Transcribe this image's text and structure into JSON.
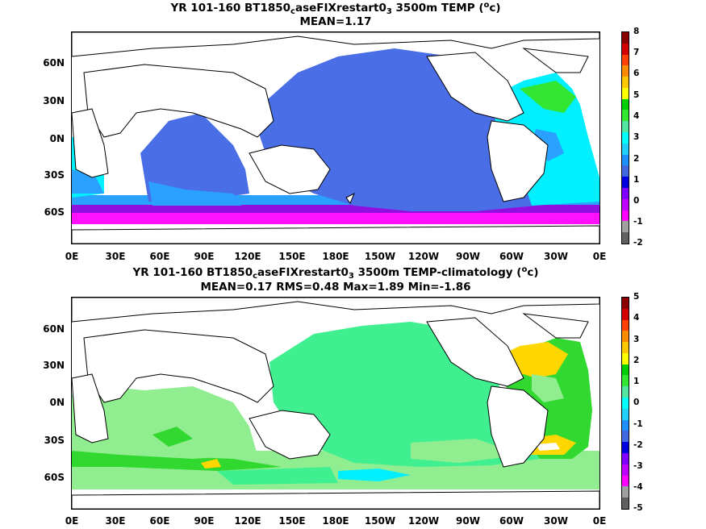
{
  "panels": [
    {
      "title_line1_pre": "YR 101-160 BT1850",
      "title_line1_sub": "c",
      "title_line1_mid": "aseFIXrestart0",
      "title_line1_sub2": "3",
      "title_line1_post": " 3500m TEMP (",
      "title_line1_sup": "o",
      "title_line1_end": "c)",
      "title_line2": "MEAN=1.17",
      "yticks": [
        "60N",
        "30N",
        "0N",
        "30S",
        "60S"
      ],
      "xticks": [
        "0E",
        "30E",
        "60E",
        "90E",
        "120E",
        "150E",
        "180E",
        "150W",
        "120W",
        "90W",
        "60W",
        "30W",
        "0E"
      ],
      "colorbar_labels": [
        "8",
        "7",
        "6",
        "5",
        "4",
        "3",
        "2",
        "1",
        "0",
        "-1",
        "-2"
      ],
      "colorbar_colors": [
        "#8b0000",
        "#d40000",
        "#ff4000",
        "#ff8c00",
        "#ffc800",
        "#ffff00",
        "#00d000",
        "#32e632",
        "#50e6a0",
        "#00ffff",
        "#20d0ff",
        "#1e90ff",
        "#4169e1",
        "#0000e0",
        "#7f00ff",
        "#c000ff",
        "#ff00ff",
        "#a0a0a0",
        "#606060"
      ]
    },
    {
      "title_line1_pre": "YR 101-160 BT1850",
      "title_line1_sub": "c",
      "title_line1_mid": "aseFIXrestart0",
      "title_line1_sub2": "3",
      "title_line1_post": " 3500m TEMP-climatology (",
      "title_line1_sup": "o",
      "title_line1_end": "c)",
      "title_line2": "MEAN=0.17   RMS=0.48   Max=1.89   Min=-1.86",
      "yticks": [
        "60N",
        "30N",
        "0N",
        "30S",
        "60S"
      ],
      "xticks": [
        "0E",
        "30E",
        "60E",
        "90E",
        "120E",
        "150E",
        "180E",
        "150W",
        "120W",
        "90W",
        "60W",
        "30W",
        "0E"
      ],
      "colorbar_labels": [
        "5",
        "4",
        "3",
        "2",
        "1",
        "0",
        "-1",
        "-2",
        "-3",
        "-4",
        "-5"
      ],
      "colorbar_colors": [
        "#8b0000",
        "#d40000",
        "#ff4000",
        "#ff8c00",
        "#ffc800",
        "#ffff00",
        "#00d000",
        "#32e632",
        "#50e6a0",
        "#00ffff",
        "#20d0ff",
        "#1e90ff",
        "#4169e1",
        "#0000e0",
        "#7f00ff",
        "#c000ff",
        "#ff00ff",
        "#a0a0a0",
        "#606060"
      ]
    }
  ],
  "colors": {
    "ocean_blue": "#4a6ee6",
    "ocean_cyan": "#00f0ff",
    "ocean_lightblue": "#2aa0ff",
    "ocean_purple": "#9010e0",
    "ocean_magenta": "#ff10ff",
    "ocean_green": "#30e030",
    "anom_seagreen": "#40f090",
    "anom_lightgreen": "#90ee90",
    "anom_green": "#30d830",
    "anom_yellow": "#ffd700",
    "land": "#ffffff"
  }
}
